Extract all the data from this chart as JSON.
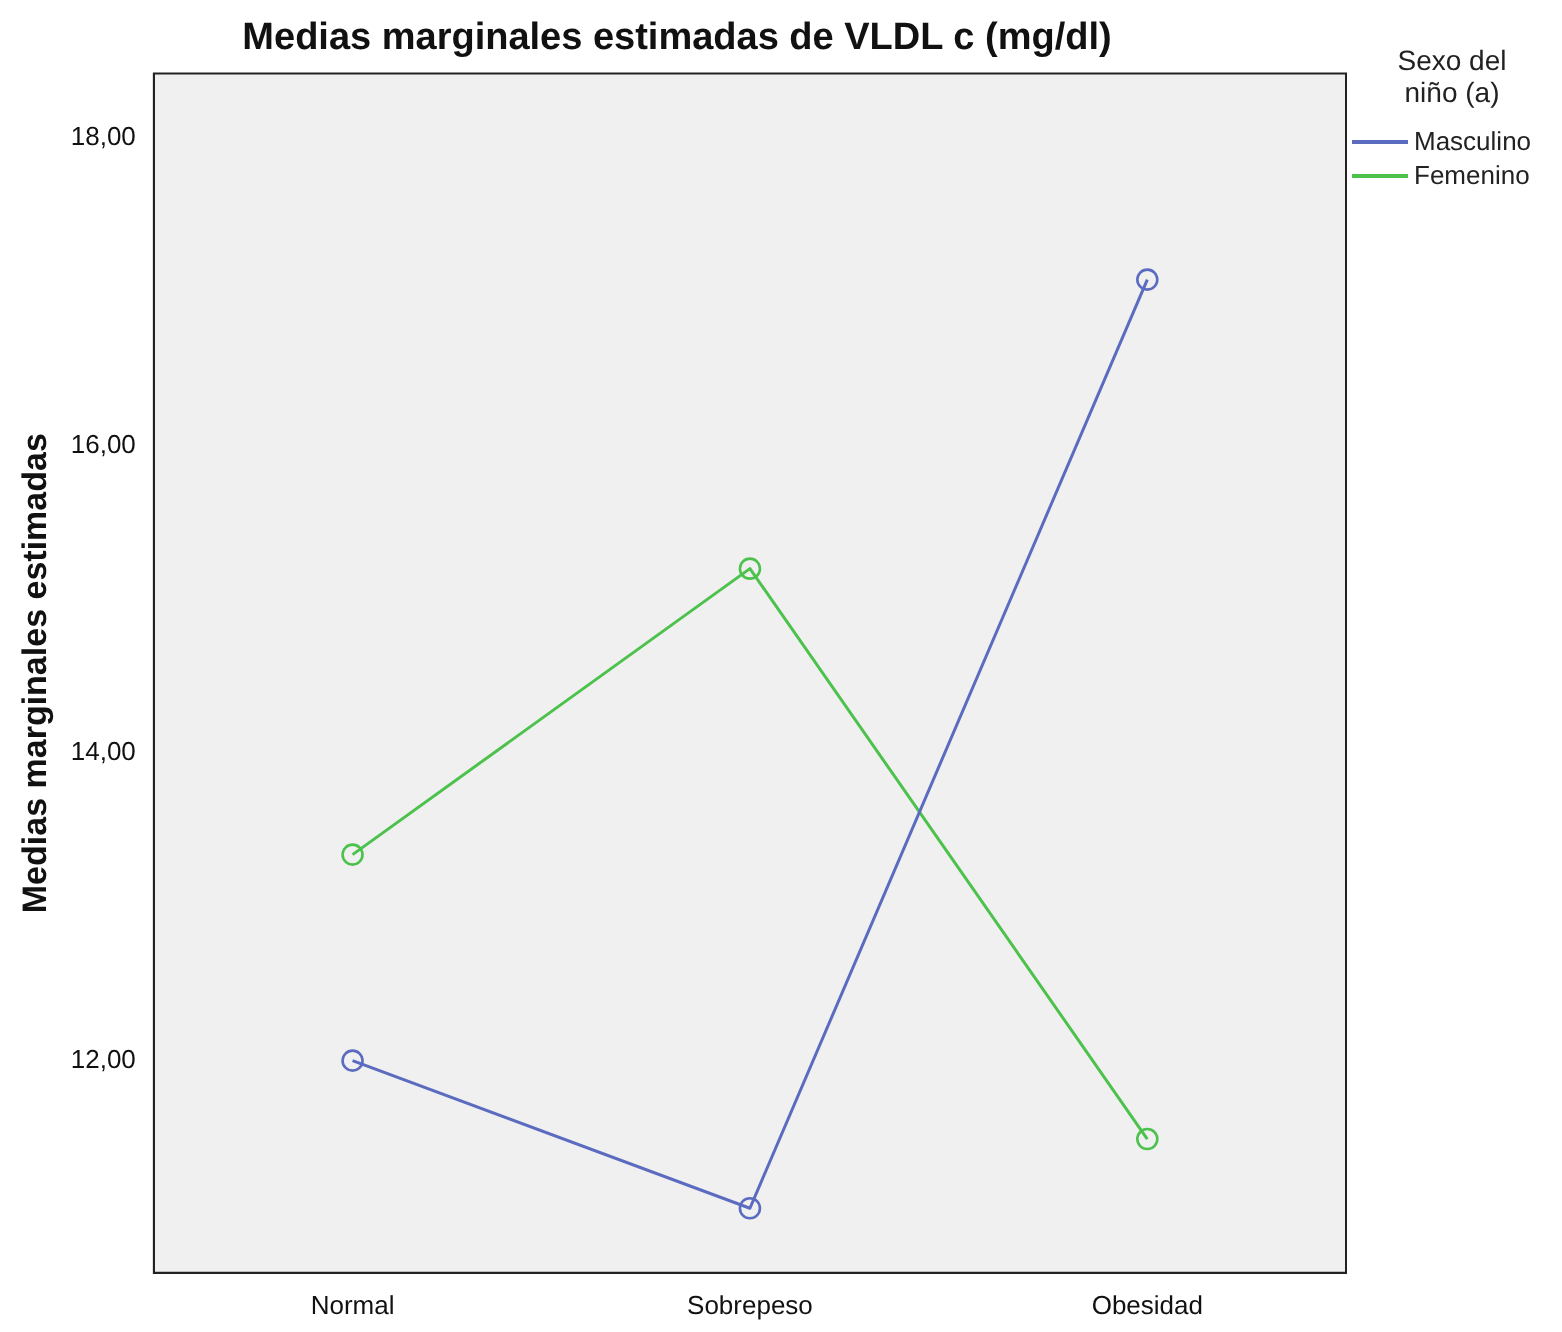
{
  "chart_data": {
    "type": "line",
    "title": "Medias marginales estimadas de VLDL c (mg/dl)",
    "ylabel": "Medias marginales estimadas",
    "legend_title": "Sexo del niño (a)",
    "categories": [
      "Normal",
      "Sobrepeso",
      "Obesidad"
    ],
    "series": [
      {
        "name": "Masculino",
        "color": "#5b6bc0",
        "values": [
          12.0,
          11.04,
          17.08
        ]
      },
      {
        "name": "Femenino",
        "color": "#4cc24c",
        "values": [
          13.34,
          15.2,
          11.49
        ]
      }
    ],
    "ylim": [
      10.62,
      18.42
    ],
    "yticks": [
      {
        "value": 12,
        "label": "12,00"
      },
      {
        "value": 14,
        "label": "14,00"
      },
      {
        "value": 16,
        "label": "16,00"
      },
      {
        "value": 18,
        "label": "18,00"
      }
    ],
    "grid": false,
    "legend": "top right",
    "marker": "circle",
    "line_style": "solid"
  }
}
